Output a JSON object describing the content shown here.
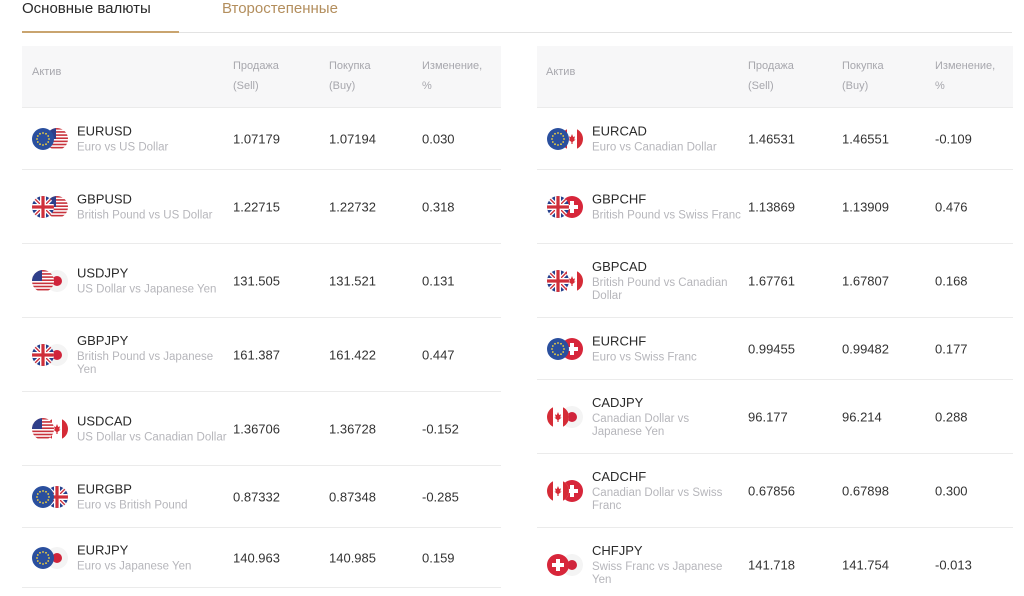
{
  "tabs": [
    {
      "label": "Основные валюты",
      "active": true
    },
    {
      "label": "Второстепенные",
      "active": false
    }
  ],
  "columns": {
    "asset": "Актив",
    "sell": [
      "Продажа",
      "(Sell)"
    ],
    "buy": [
      "Покупка",
      "(Buy)"
    ],
    "change": [
      "Изменение,",
      "%"
    ]
  },
  "colors": {
    "accent": "#c9a46f",
    "inactive_tab": "#b38e5d",
    "header_bg": "#f7f7f8"
  },
  "left_rows": [
    {
      "code": "EURUSD",
      "desc": "Euro vs US Dollar",
      "sell": "1.07179",
      "buy": "1.07194",
      "change": "0.030",
      "flags": [
        "eu",
        "us"
      ]
    },
    {
      "code": "GBPUSD",
      "desc": "British Pound vs US Dollar",
      "sell": "1.22715",
      "buy": "1.22732",
      "change": "0.318",
      "flags": [
        "gb",
        "us"
      ]
    },
    {
      "code": "USDJPY",
      "desc": "US Dollar vs Japanese Yen",
      "sell": "131.505",
      "buy": "131.521",
      "change": "0.131",
      "flags": [
        "us",
        "jp"
      ]
    },
    {
      "code": "GBPJPY",
      "desc": "British Pound vs Japanese Yen",
      "sell": "161.387",
      "buy": "161.422",
      "change": "0.447",
      "flags": [
        "gb",
        "jp"
      ]
    },
    {
      "code": "USDCAD",
      "desc": "US Dollar vs Canadian Dollar",
      "sell": "1.36706",
      "buy": "1.36728",
      "change": "-0.152",
      "flags": [
        "us",
        "ca"
      ]
    },
    {
      "code": "EURGBP",
      "desc": "Euro vs British Pound",
      "sell": "0.87332",
      "buy": "0.87348",
      "change": "-0.285",
      "flags": [
        "eu",
        "gb"
      ]
    },
    {
      "code": "EURJPY",
      "desc": "Euro vs Japanese Yen",
      "sell": "140.963",
      "buy": "140.985",
      "change": "0.159",
      "flags": [
        "eu",
        "jp"
      ]
    }
  ],
  "right_rows": [
    {
      "code": "EURCAD",
      "desc": "Euro vs Canadian Dollar",
      "sell": "1.46531",
      "buy": "1.46551",
      "change": "-0.109",
      "flags": [
        "eu",
        "ca"
      ]
    },
    {
      "code": "GBPCHF",
      "desc": "British Pound vs Swiss Franc",
      "sell": "1.13869",
      "buy": "1.13909",
      "change": "0.476",
      "flags": [
        "gb",
        "ch"
      ]
    },
    {
      "code": "GBPCAD",
      "desc": "British Pound vs Canadian Dollar",
      "sell": "1.67761",
      "buy": "1.67807",
      "change": "0.168",
      "flags": [
        "gb",
        "ca"
      ]
    },
    {
      "code": "EURCHF",
      "desc": "Euro vs Swiss Franc",
      "sell": "0.99455",
      "buy": "0.99482",
      "change": "0.177",
      "flags": [
        "eu",
        "ch"
      ]
    },
    {
      "code": "CADJPY",
      "desc": "Canadian Dollar vs Japanese Yen",
      "sell": "96.177",
      "buy": "96.214",
      "change": "0.288",
      "flags": [
        "ca",
        "jp"
      ]
    },
    {
      "code": "CADCHF",
      "desc": "Canadian Dollar vs Swiss Franc",
      "sell": "0.67856",
      "buy": "0.67898",
      "change": "0.300",
      "flags": [
        "ca",
        "ch"
      ]
    },
    {
      "code": "CHFJPY",
      "desc": "Swiss Franc vs Japanese Yen",
      "sell": "141.718",
      "buy": "141.754",
      "change": "-0.013",
      "flags": [
        "ch",
        "jp"
      ]
    }
  ]
}
